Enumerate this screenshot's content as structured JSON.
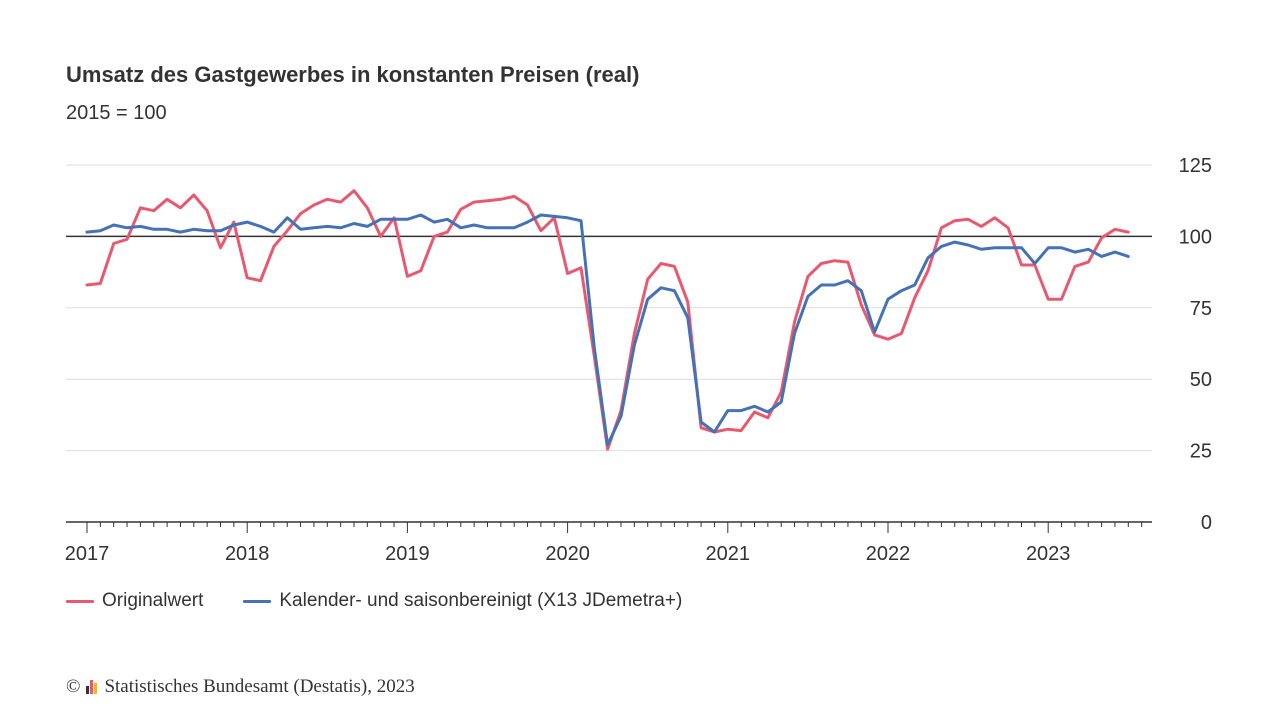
{
  "header": {
    "title": "Umsatz des Gastgewerbes in konstanten Preisen (real)",
    "subtitle": "2015 = 100"
  },
  "footer": {
    "copyright_symbol": "©",
    "source": "Statistisches Bundesamt (Destatis), 2023"
  },
  "colors": {
    "original": "#e8596f",
    "adjusted": "#4572b4",
    "reference_line": "#333333",
    "grid": "#dddddd",
    "logo": [
      "#333333",
      "#e8596f",
      "#f2b531"
    ]
  },
  "chart_data": {
    "type": "line",
    "x_start": "2017-01",
    "x_labels": [
      "2017",
      "2018",
      "2019",
      "2020",
      "2021",
      "2022",
      "2023"
    ],
    "ylim": [
      0,
      125
    ],
    "y_ticks": [
      0,
      25,
      50,
      75,
      100,
      125
    ],
    "y_axis_side": "right",
    "reference_value": 100,
    "grid": true,
    "legend_position": "bottom-left",
    "series": [
      {
        "name": "Originalwert",
        "key": "original",
        "values": [
          83,
          83.5,
          97.5,
          99,
          110,
          109,
          113,
          110,
          114.5,
          109,
          96,
          105,
          85.5,
          84.5,
          96.5,
          102,
          108,
          111,
          113,
          112,
          116,
          110,
          100,
          106.5,
          86,
          88,
          100,
          101.5,
          109.5,
          112,
          112.5,
          113,
          114,
          111,
          102,
          106.5,
          87,
          89,
          58,
          25.5,
          39,
          66,
          85,
          90.5,
          89.5,
          77,
          33,
          31.5,
          32.5,
          32,
          38.5,
          36.5,
          45.5,
          70,
          86,
          90.5,
          91.5,
          91,
          76,
          65.5,
          64,
          66,
          78.5,
          88,
          103,
          105.5,
          106,
          103.5,
          106.5,
          103,
          90,
          90,
          78,
          78,
          89.5,
          91,
          99.5,
          102.5,
          101.5
        ]
      },
      {
        "name": "Kalender- und saisonbereinigt (X13 JDemetra+)",
        "key": "adjusted",
        "values": [
          101.5,
          102,
          104,
          103,
          103.5,
          102.5,
          102.5,
          101.5,
          102.5,
          102,
          102,
          104,
          105,
          103.5,
          101.5,
          106.5,
          102.5,
          103,
          103.5,
          103,
          104.5,
          103.5,
          106,
          106,
          106,
          107.5,
          105,
          106,
          103,
          104,
          103,
          103,
          103,
          105,
          107.5,
          107,
          106.5,
          105.5,
          61,
          27,
          37,
          62,
          78,
          82,
          81,
          71.5,
          35,
          31.5,
          39,
          39,
          40.5,
          38.5,
          42,
          66,
          79,
          83,
          83,
          84.5,
          81,
          66.5,
          78,
          81,
          83,
          92.5,
          96.5,
          98,
          97,
          95.5,
          96,
          96,
          96,
          90.5,
          96,
          96,
          94.5,
          95.5,
          93,
          94.5,
          93
        ]
      }
    ]
  }
}
